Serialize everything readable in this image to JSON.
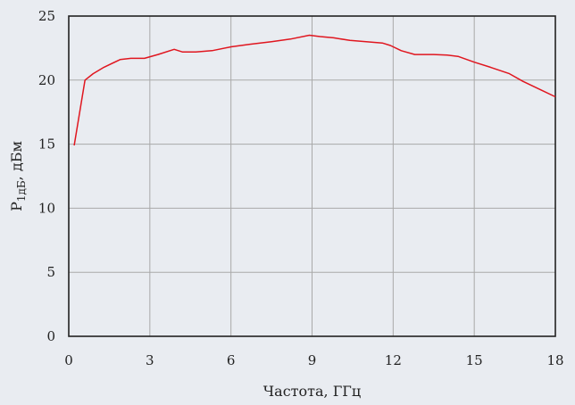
{
  "chart_data": {
    "type": "line",
    "xlabel": "Частота, ГГц",
    "ylabel_main": "P",
    "ylabel_sub": "1дБ",
    "ylabel_tail": ", дБм",
    "xlim": [
      0,
      18
    ],
    "ylim": [
      0,
      25
    ],
    "xticks": [
      0,
      3,
      6,
      9,
      12,
      15,
      18
    ],
    "yticks": [
      0,
      5,
      10,
      15,
      20,
      25
    ],
    "grid": true,
    "legend": "none",
    "series": [
      {
        "color": "#e0161f",
        "x": [
          0.2,
          0.6,
          0.9,
          1.3,
          1.9,
          2.3,
          2.8,
          3.3,
          3.9,
          4.2,
          4.7,
          5.3,
          6.0,
          6.7,
          7.5,
          8.2,
          8.9,
          9.3,
          9.8,
          10.4,
          11.0,
          11.6,
          11.9,
          12.3,
          12.8,
          13.5,
          14.0,
          14.4,
          15.0,
          15.6,
          16.3,
          16.8,
          17.5,
          18.0
        ],
        "y": [
          14.9,
          20.0,
          20.5,
          21.0,
          21.6,
          21.7,
          21.7,
          22.0,
          22.4,
          22.2,
          22.2,
          22.3,
          22.6,
          22.8,
          23.0,
          23.2,
          23.5,
          23.4,
          23.3,
          23.1,
          23.0,
          22.9,
          22.7,
          22.3,
          22.0,
          22.0,
          21.95,
          21.85,
          21.4,
          21.0,
          20.5,
          19.9,
          19.2,
          18.7
        ]
      }
    ]
  }
}
